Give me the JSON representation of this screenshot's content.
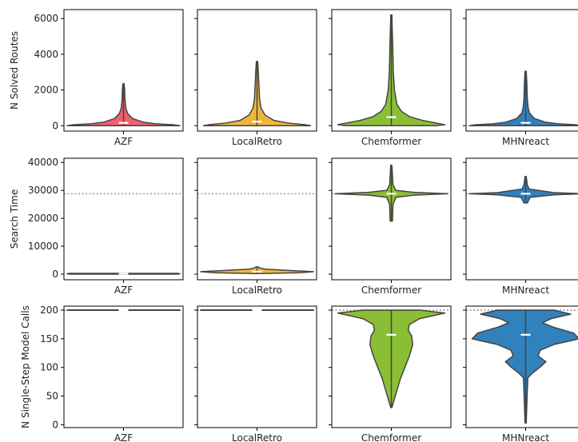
{
  "chart_data": [
    {
      "type": "violin",
      "ylabel": "N Solved Routes",
      "ylim": [
        -300,
        6500
      ],
      "yticks": [
        0,
        2000,
        4000,
        6000
      ],
      "ytick_labels": [
        "0",
        "2000",
        "4000",
        "6000"
      ],
      "reference_line": null,
      "panels": [
        {
          "category": "AZF",
          "color": "#f0606e",
          "max": 2350,
          "median": 160,
          "profile": [
            [
              0,
              1.0
            ],
            [
              50,
              0.9
            ],
            [
              100,
              0.6
            ],
            [
              200,
              0.35
            ],
            [
              400,
              0.16
            ],
            [
              700,
              0.07
            ],
            [
              1000,
              0.04
            ],
            [
              1500,
              0.025
            ],
            [
              2000,
              0.02
            ],
            [
              2350,
              0.01
            ]
          ]
        },
        {
          "category": "LocalRetro",
          "color": "#f0b63c",
          "max": 3600,
          "median": 230,
          "profile": [
            [
              0,
              0.95
            ],
            [
              60,
              0.85
            ],
            [
              150,
              0.55
            ],
            [
              300,
              0.3
            ],
            [
              600,
              0.14
            ],
            [
              1000,
              0.07
            ],
            [
              1500,
              0.045
            ],
            [
              2500,
              0.03
            ],
            [
              3200,
              0.02
            ],
            [
              3600,
              0.01
            ]
          ]
        },
        {
          "category": "Chemformer",
          "color": "#8abf35",
          "max": 6200,
          "median": 480,
          "profile": [
            [
              0,
              0.8
            ],
            [
              60,
              0.95
            ],
            [
              150,
              0.8
            ],
            [
              300,
              0.55
            ],
            [
              500,
              0.33
            ],
            [
              800,
              0.18
            ],
            [
              1200,
              0.1
            ],
            [
              2000,
              0.055
            ],
            [
              3000,
              0.035
            ],
            [
              4500,
              0.025
            ],
            [
              5500,
              0.015
            ],
            [
              6200,
              0.01
            ]
          ]
        },
        {
          "category": "MHNreact",
          "color": "#3181bd",
          "max": 3050,
          "median": 160,
          "profile": [
            [
              0,
              1.0
            ],
            [
              50,
              0.9
            ],
            [
              100,
              0.6
            ],
            [
              200,
              0.35
            ],
            [
              400,
              0.16
            ],
            [
              700,
              0.07
            ],
            [
              1000,
              0.045
            ],
            [
              1500,
              0.03
            ],
            [
              2500,
              0.02
            ],
            [
              3050,
              0.01
            ]
          ]
        }
      ]
    },
    {
      "type": "violin",
      "ylabel": "Search Time",
      "ylim": [
        -2000,
        41500
      ],
      "yticks": [
        0,
        10000,
        20000,
        30000,
        40000
      ],
      "ytick_labels": [
        "0",
        "10000",
        "20000",
        "30000",
        "40000"
      ],
      "reference_line": 28800,
      "panels": [
        {
          "category": "AZF",
          "color": "#f0606e",
          "max": 300,
          "median": 150,
          "profile": [
            [
              0,
              0.96
            ],
            [
              150,
              1.0
            ],
            [
              300,
              0.96
            ]
          ]
        },
        {
          "category": "LocalRetro",
          "color": "#f0b63c",
          "max": 2600,
          "median": 900,
          "profile": [
            [
              200,
              0.05
            ],
            [
              500,
              0.75
            ],
            [
              900,
              1.0
            ],
            [
              1300,
              0.6
            ],
            [
              1800,
              0.15
            ],
            [
              2200,
              0.05
            ],
            [
              2600,
              0.02
            ]
          ]
        },
        {
          "category": "Chemformer",
          "color": "#8abf35",
          "max": 39000,
          "median": 28800,
          "profile": [
            [
              19000,
              0.02
            ],
            [
              25000,
              0.03
            ],
            [
              27500,
              0.08
            ],
            [
              28300,
              0.4
            ],
            [
              28800,
              1.0
            ],
            [
              29300,
              0.4
            ],
            [
              30000,
              0.08
            ],
            [
              32000,
              0.03
            ],
            [
              39000,
              0.01
            ]
          ]
        },
        {
          "category": "MHNreact",
          "color": "#3181bd",
          "max": 35000,
          "median": 28800,
          "profile": [
            [
              25500,
              0.03
            ],
            [
              27500,
              0.08
            ],
            [
              28400,
              0.5
            ],
            [
              28800,
              1.0
            ],
            [
              29200,
              0.5
            ],
            [
              30500,
              0.06
            ],
            [
              32000,
              0.03
            ],
            [
              35000,
              0.01
            ]
          ]
        }
      ]
    },
    {
      "type": "violin",
      "ylabel": "N Single-Step Model Calls",
      "ylim": [
        -5,
        207
      ],
      "yticks": [
        0,
        50,
        100,
        150,
        200
      ],
      "ytick_labels": [
        "0",
        "50",
        "100",
        "150",
        "200"
      ],
      "reference_line": 200,
      "panels": [
        {
          "category": "AZF",
          "color": "#f0606e",
          "max": 200,
          "median": 200,
          "profile": [
            [
              199.7,
              1.0
            ],
            [
              200,
              1.0
            ],
            [
              200.3,
              1.0
            ]
          ]
        },
        {
          "category": "LocalRetro",
          "color": "#f0b63c",
          "max": 200,
          "median": 200,
          "profile": [
            [
              199.7,
              1.0
            ],
            [
              200,
              1.0
            ],
            [
              200.3,
              1.0
            ]
          ]
        },
        {
          "category": "Chemformer",
          "color": "#8abf35",
          "max": 200,
          "median": 157,
          "profile": [
            [
              30,
              0.01
            ],
            [
              40,
              0.04
            ],
            [
              60,
              0.1
            ],
            [
              80,
              0.16
            ],
            [
              100,
              0.24
            ],
            [
              120,
              0.32
            ],
            [
              140,
              0.38
            ],
            [
              155,
              0.36
            ],
            [
              165,
              0.3
            ],
            [
              175,
              0.32
            ],
            [
              185,
              0.5
            ],
            [
              195,
              0.95
            ],
            [
              200,
              0.5
            ]
          ]
        },
        {
          "category": "MHNreact",
          "color": "#3181bd",
          "max": 200,
          "median": 157,
          "profile": [
            [
              3,
              0.01
            ],
            [
              30,
              0.02
            ],
            [
              60,
              0.03
            ],
            [
              82,
              0.04
            ],
            [
              90,
              0.12
            ],
            [
              100,
              0.25
            ],
            [
              110,
              0.36
            ],
            [
              120,
              0.22
            ],
            [
              130,
              0.26
            ],
            [
              140,
              0.5
            ],
            [
              150,
              0.95
            ],
            [
              160,
              0.85
            ],
            [
              170,
              0.5
            ],
            [
              178,
              0.3
            ],
            [
              185,
              0.45
            ],
            [
              193,
              0.8
            ],
            [
              200,
              0.5
            ]
          ]
        }
      ]
    }
  ]
}
